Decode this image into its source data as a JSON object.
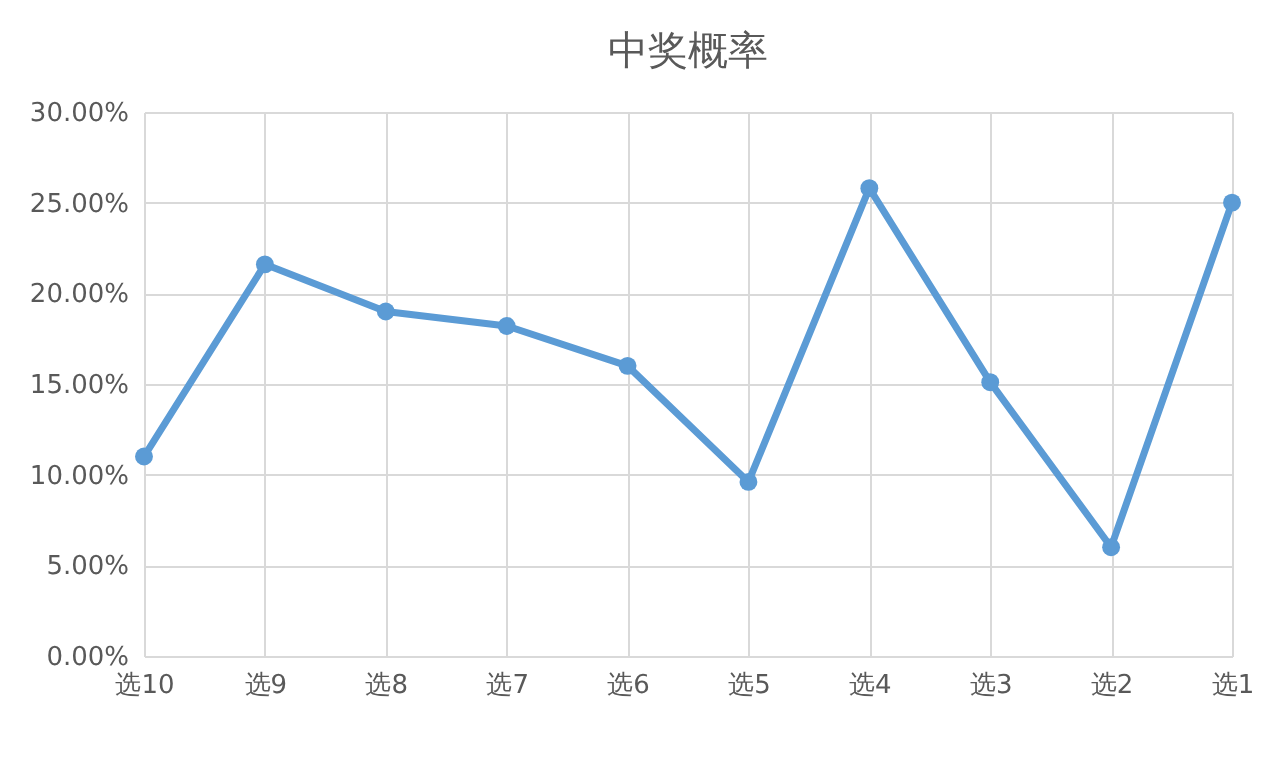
{
  "chart_data": {
    "type": "line",
    "title": "中奖概率",
    "categories": [
      "选10",
      "选9",
      "选8",
      "选7",
      "选6",
      "选5",
      "选4",
      "选3",
      "选2",
      "选1"
    ],
    "series": [
      {
        "color": "#5b9bd5",
        "values": [
          11.0,
          21.6,
          19.0,
          18.2,
          16.0,
          9.6,
          25.8,
          15.1,
          6.0,
          25.0
        ]
      }
    ],
    "ylim": [
      0,
      30
    ],
    "yticks": [
      {
        "value": 0,
        "label": "0.00%"
      },
      {
        "value": 5,
        "label": "5.00%"
      },
      {
        "value": 10,
        "label": "10.00%"
      },
      {
        "value": 15,
        "label": "15.00%"
      },
      {
        "value": 20,
        "label": "20.00%"
      },
      {
        "value": 25,
        "label": "25.00%"
      },
      {
        "value": 30,
        "label": "30.00%"
      }
    ],
    "grid": true,
    "marker": "circle",
    "line_style": "solid"
  }
}
